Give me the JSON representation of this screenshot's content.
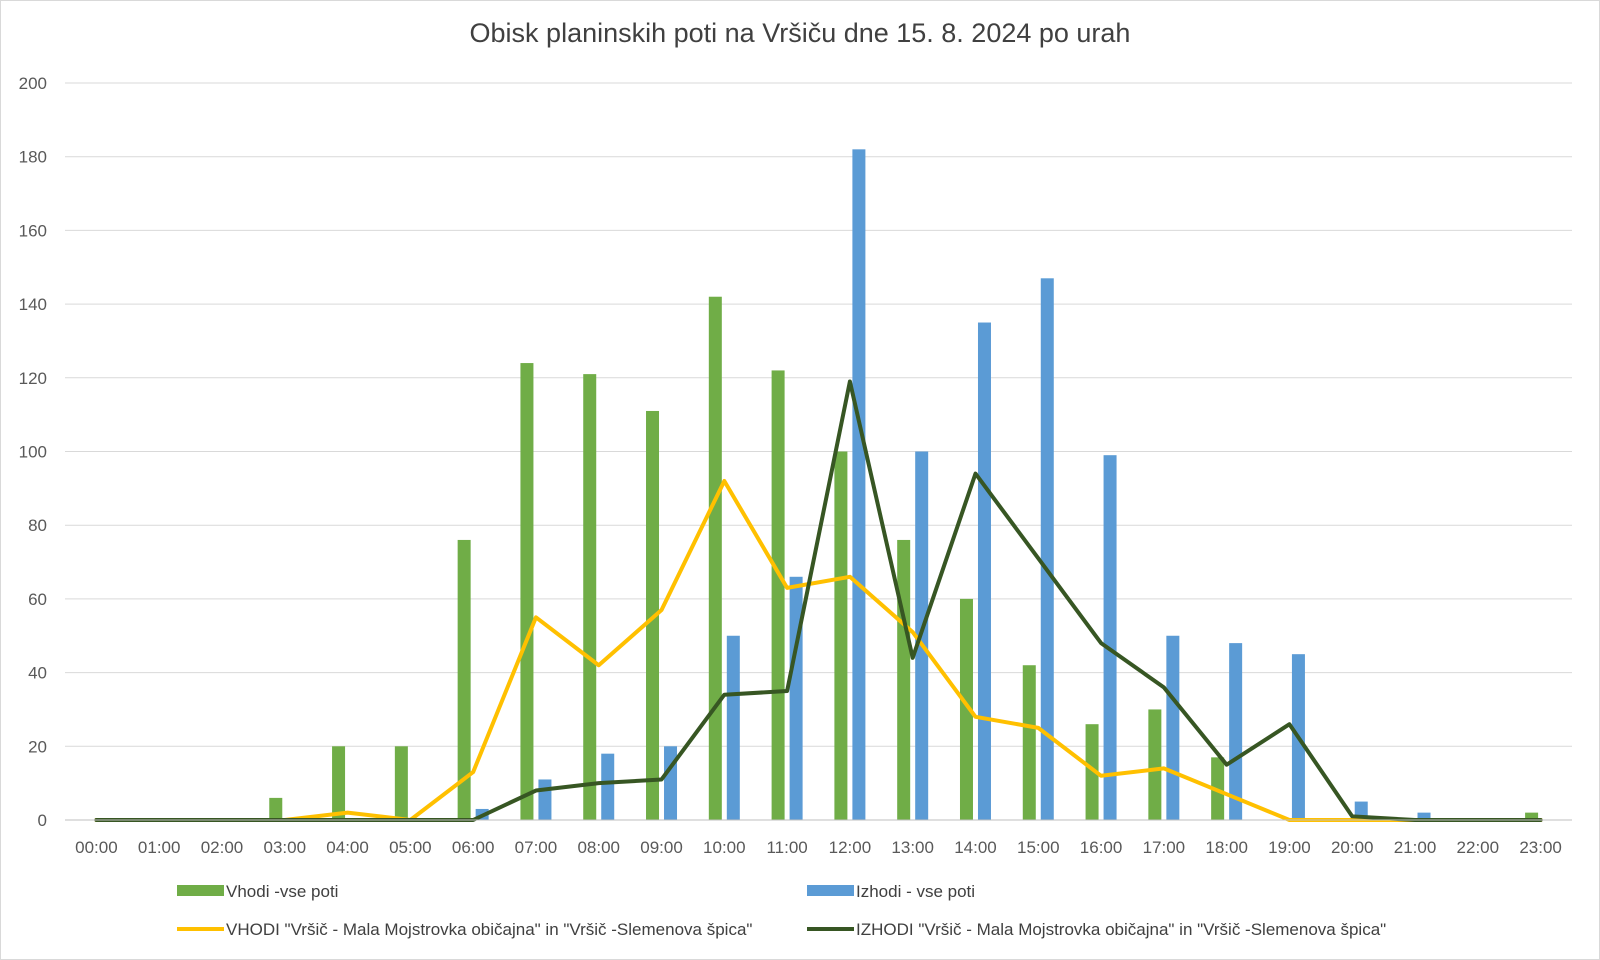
{
  "chart_data": {
    "type": "bar",
    "title": "Obisk planinskih poti na Vršiču dne 15. 8. 2024 po urah",
    "categories": [
      "00:00",
      "01:00",
      "02:00",
      "03:00",
      "04:00",
      "05:00",
      "06:00",
      "07:00",
      "08:00",
      "09:00",
      "10:00",
      "11:00",
      "12:00",
      "13:00",
      "14:00",
      "15:00",
      "16:00",
      "17:00",
      "18:00",
      "19:00",
      "20:00",
      "21:00",
      "22:00",
      "23:00"
    ],
    "ylim": [
      0,
      200
    ],
    "yticks": [
      "0",
      "20",
      "40",
      "60",
      "80",
      "100",
      "120",
      "140",
      "160",
      "180",
      "200"
    ],
    "grid": true,
    "legend_position": "bottom",
    "series": [
      {
        "name": "Vhodi -vse poti",
        "kind": "bar",
        "color": "#70ad47",
        "values": [
          0,
          0,
          0,
          6,
          20,
          20,
          76,
          124,
          121,
          111,
          142,
          122,
          100,
          76,
          60,
          42,
          26,
          30,
          17,
          0,
          0,
          0,
          0,
          2
        ]
      },
      {
        "name": "Izhodi - vse poti",
        "kind": "bar",
        "color": "#5b9bd5",
        "values": [
          0,
          0,
          0,
          0,
          0,
          0,
          3,
          11,
          18,
          20,
          50,
          66,
          182,
          100,
          135,
          147,
          99,
          50,
          48,
          45,
          5,
          2,
          0,
          0
        ]
      },
      {
        "name": "VHODI \"Vršič - Mala Mojstrovka običajna\" in \"Vršič -Slemenova špica\"",
        "kind": "line",
        "color": "#ffc000",
        "values": [
          0,
          0,
          0,
          0,
          2,
          0,
          13,
          55,
          42,
          57,
          92,
          63,
          66,
          51,
          28,
          25,
          12,
          14,
          7,
          0,
          0,
          0,
          0,
          0
        ]
      },
      {
        "name": "IZHODI \"Vršič - Mala Mojstrovka običajna\" in \"Vršič -Slemenova špica\"",
        "kind": "line",
        "color": "#375623",
        "values": [
          0,
          0,
          0,
          0,
          0,
          0,
          0,
          8,
          10,
          11,
          34,
          35,
          119,
          44,
          94,
          71,
          48,
          36,
          15,
          26,
          1,
          0,
          0,
          0
        ]
      }
    ]
  }
}
